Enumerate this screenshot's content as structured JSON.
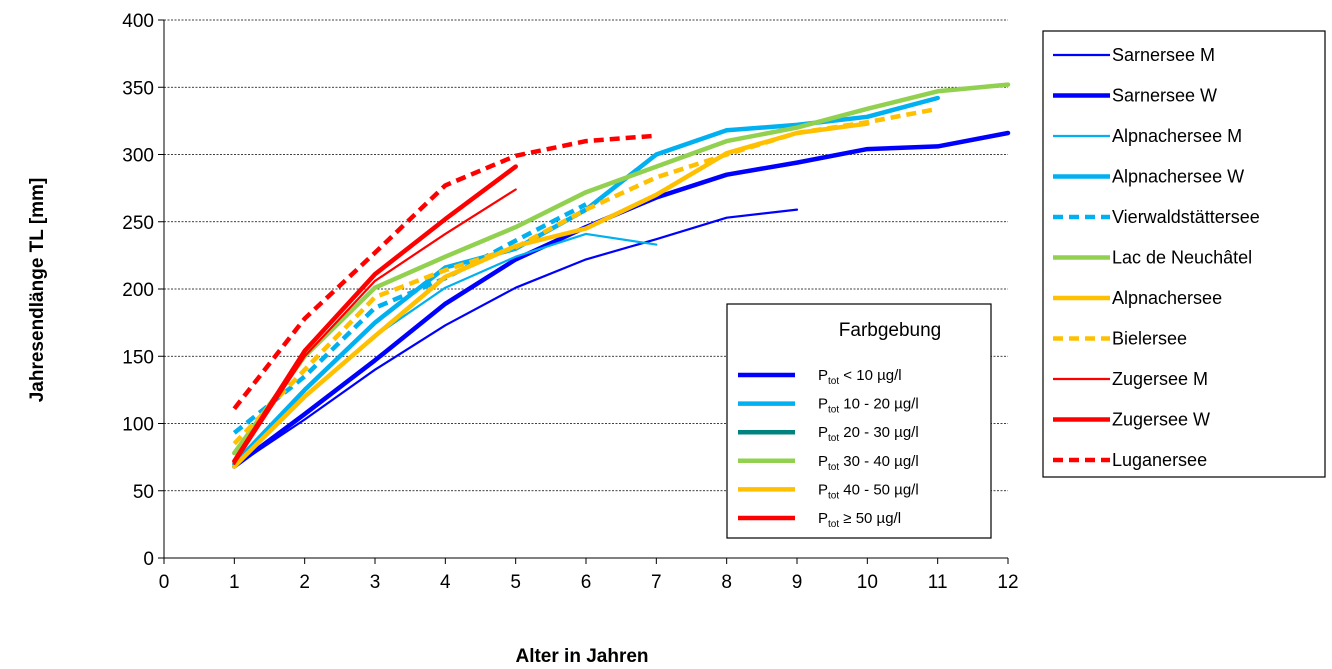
{
  "chart_data": {
    "type": "line",
    "xlabel": "Alter in Jahren",
    "ylabel": "Jahresendlänge TL [mm]",
    "xlim": [
      0,
      12
    ],
    "ylim": [
      0,
      400
    ],
    "x_ticks": [
      "0",
      "1",
      "2",
      "3",
      "4",
      "5",
      "6",
      "7",
      "8",
      "9",
      "10",
      "11",
      "12"
    ],
    "y_ticks": [
      "0",
      "50",
      "100",
      "150",
      "200",
      "250",
      "300",
      "350",
      "400"
    ],
    "grid": "horizontal",
    "legend_position": "right",
    "series": [
      {
        "name": "Sarnersee M",
        "color": "#0000ff",
        "style": "solid",
        "weight": "thin",
        "x": [
          1,
          2,
          3,
          4,
          5,
          6,
          7,
          8,
          9
        ],
        "y": [
          68,
          103,
          140,
          173,
          201,
          222,
          237,
          253,
          259
        ]
      },
      {
        "name": "Sarnersee W",
        "color": "#0000ff",
        "style": "solid",
        "weight": "thick",
        "x": [
          1,
          2,
          3,
          4,
          5,
          6,
          7,
          8,
          9,
          10,
          11,
          12
        ],
        "y": [
          68,
          107,
          147,
          189,
          222,
          246,
          268,
          285,
          294,
          304,
          306,
          316
        ]
      },
      {
        "name": "Alpnachersee M",
        "color": "#00b0f0",
        "style": "solid",
        "weight": "thin",
        "x": [
          1,
          2,
          3,
          4,
          5,
          6,
          7
        ],
        "y": [
          70,
          120,
          165,
          201,
          224,
          241,
          233
        ]
      },
      {
        "name": "Alpnachersee W",
        "color": "#00b0f0",
        "style": "solid",
        "weight": "thick",
        "x": [
          1,
          2,
          3,
          4,
          5,
          6,
          7,
          8,
          9,
          10,
          11
        ],
        "y": [
          70,
          125,
          175,
          216,
          230,
          259,
          300,
          318,
          322,
          328,
          342
        ]
      },
      {
        "name": "Vierwaldstättersee",
        "color": "#00b0f0",
        "style": "dashed",
        "weight": "thick",
        "x": [
          1,
          2,
          3,
          4,
          5,
          6
        ],
        "y": [
          93,
          135,
          186,
          208,
          236,
          263
        ]
      },
      {
        "name": "Lac de Neuchâtel",
        "color": "#92d050",
        "style": "solid",
        "weight": "thick",
        "x": [
          1,
          2,
          3,
          4,
          5,
          6,
          7,
          8,
          9,
          10,
          11,
          12
        ],
        "y": [
          78,
          150,
          201,
          224,
          246,
          272,
          291,
          310,
          320,
          334,
          347,
          352
        ]
      },
      {
        "name": "Alpnachersee",
        "color": "#ffc000",
        "style": "solid",
        "weight": "thick",
        "x": [
          1,
          2,
          3,
          4,
          5,
          6,
          7,
          8,
          9,
          10
        ],
        "y": [
          68,
          120,
          165,
          209,
          232,
          245,
          270,
          301,
          316,
          323
        ]
      },
      {
        "name": "Bielersee",
        "color": "#ffc000",
        "style": "dashed",
        "weight": "thick",
        "x": [
          1,
          2,
          3,
          4,
          5,
          6,
          7,
          8,
          9,
          10,
          11
        ],
        "y": [
          85,
          140,
          194,
          214,
          231,
          259,
          283,
          300,
          316,
          324,
          334
        ]
      },
      {
        "name": "Zugersee M",
        "color": "#ff0000",
        "style": "solid",
        "weight": "thin",
        "x": [
          1,
          2,
          3,
          4,
          5
        ],
        "y": [
          70,
          150,
          206,
          241,
          274
        ]
      },
      {
        "name": "Zugersee W",
        "color": "#ff0000",
        "style": "solid",
        "weight": "thick",
        "x": [
          1,
          2,
          3,
          4,
          5
        ],
        "y": [
          72,
          154,
          211,
          252,
          291
        ]
      },
      {
        "name": "Luganersee",
        "color": "#ff0000",
        "style": "dashed",
        "weight": "thick",
        "x": [
          1,
          2,
          3,
          4,
          5,
          6,
          7
        ],
        "y": [
          111,
          178,
          227,
          277,
          299,
          310,
          314
        ]
      }
    ],
    "color_key": {
      "title": "Farbgebung",
      "entries": [
        {
          "prefix": "P",
          "sub": "tot",
          "text": " < 10 µg/l",
          "color": "#0000ff"
        },
        {
          "prefix": "P",
          "sub": "tot",
          "text": "  10 - 20 µg/l",
          "color": "#00b0f0"
        },
        {
          "prefix": "P",
          "sub": "tot",
          "text": " 20 - 30 µg/l",
          "color": "#00827f"
        },
        {
          "prefix": "P",
          "sub": "tot",
          "text": " 30 - 40 µg/l",
          "color": "#92d050"
        },
        {
          "prefix": "P",
          "sub": "tot",
          "text": " 40 - 50 µg/l",
          "color": "#ffc000"
        },
        {
          "prefix": "P",
          "sub": "tot",
          "text": " ≥ 50 µg/l",
          "color": "#ff0000"
        }
      ]
    }
  }
}
